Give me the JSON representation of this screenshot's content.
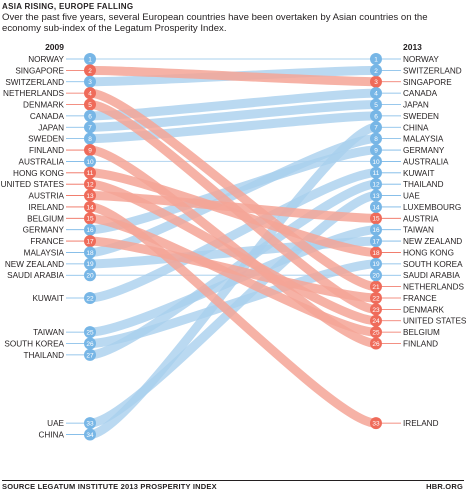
{
  "title": "ASIA RISING, EUROPE FALLING",
  "subtitle": "Over the past five years, several European countries have been overtaken by Asian countries on the economy sub-index of the Legatum Prosperity Index.",
  "source": "SOURCE LEGATUM INSTITUTE 2013 PROSPERITY INDEX",
  "credit": "HBR.ORG",
  "colors": {
    "falling": "#f4a596",
    "rising": "#a9cfee",
    "unchanged": "#a9cfee",
    "badge_falling": "#ef6b5a",
    "badge_rising": "#77b6e6",
    "text": "#231f20"
  },
  "chart_data": {
    "type": "slope",
    "left_year": "2009",
    "right_year": "2013",
    "countries": [
      {
        "name": "NORWAY",
        "rank_2009": 1,
        "rank_2013": 1,
        "trend": "same"
      },
      {
        "name": "SINGAPORE",
        "rank_2009": 2,
        "rank_2013": 3,
        "trend": "falling"
      },
      {
        "name": "SWITZERLAND",
        "rank_2009": 3,
        "rank_2013": 2,
        "trend": "rising"
      },
      {
        "name": "NETHERLANDS",
        "rank_2009": 4,
        "rank_2013": 21,
        "trend": "falling"
      },
      {
        "name": "DENMARK",
        "rank_2009": 5,
        "rank_2013": 23,
        "trend": "falling"
      },
      {
        "name": "CANADA",
        "rank_2009": 6,
        "rank_2013": 4,
        "trend": "rising"
      },
      {
        "name": "JAPAN",
        "rank_2009": 7,
        "rank_2013": 5,
        "trend": "rising"
      },
      {
        "name": "SWEDEN",
        "rank_2009": 8,
        "rank_2013": 6,
        "trend": "rising"
      },
      {
        "name": "FINLAND",
        "rank_2009": 9,
        "rank_2013": 26,
        "trend": "falling"
      },
      {
        "name": "AUSTRALIA",
        "rank_2009": 10,
        "rank_2013": 10,
        "trend": "same"
      },
      {
        "name": "HONG KONG",
        "rank_2009": 11,
        "rank_2013": 18,
        "trend": "falling"
      },
      {
        "name": "UNITED STATES",
        "rank_2009": 12,
        "rank_2013": 24,
        "trend": "falling"
      },
      {
        "name": "AUSTRIA",
        "rank_2009": 13,
        "rank_2013": 15,
        "trend": "falling"
      },
      {
        "name": "IRELAND",
        "rank_2009": 14,
        "rank_2013": 33,
        "trend": "falling"
      },
      {
        "name": "BELGIUM",
        "rank_2009": 15,
        "rank_2013": 25,
        "trend": "falling"
      },
      {
        "name": "GERMANY",
        "rank_2009": 16,
        "rank_2013": 9,
        "trend": "rising"
      },
      {
        "name": "FRANCE",
        "rank_2009": 17,
        "rank_2013": 22,
        "trend": "falling"
      },
      {
        "name": "MALAYSIA",
        "rank_2009": 18,
        "rank_2013": 8,
        "trend": "rising"
      },
      {
        "name": "NEW ZEALAND",
        "rank_2009": 19,
        "rank_2013": 17,
        "trend": "rising"
      },
      {
        "name": "SAUDI ARABIA",
        "rank_2009": 20,
        "rank_2013": 20,
        "trend": "same"
      },
      {
        "name": "KUWAIT",
        "rank_2009": 22,
        "rank_2013": 11,
        "trend": "rising"
      },
      {
        "name": "TAIWAN",
        "rank_2009": 25,
        "rank_2013": 16,
        "trend": "rising"
      },
      {
        "name": "SOUTH KOREA",
        "rank_2009": 26,
        "rank_2013": 19,
        "trend": "rising"
      },
      {
        "name": "THAILAND",
        "rank_2009": 27,
        "rank_2013": 12,
        "trend": "rising"
      },
      {
        "name": "UAE",
        "rank_2009": 33,
        "rank_2013": 13,
        "trend": "rising"
      },
      {
        "name": "CHINA",
        "rank_2009": 34,
        "rank_2013": 7,
        "trend": "rising"
      },
      {
        "name": "LUXEMBOURG",
        "rank_2009": null,
        "rank_2013": 14,
        "trend": "new"
      }
    ]
  }
}
